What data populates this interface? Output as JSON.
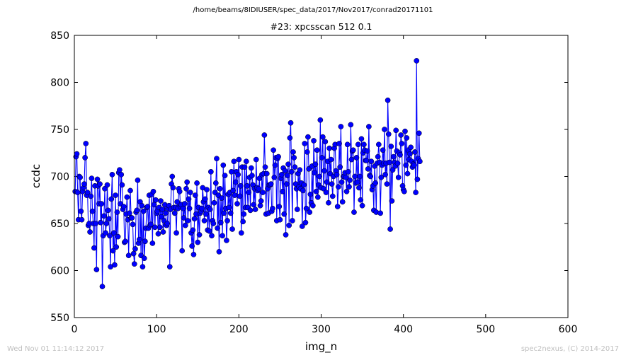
{
  "suptitle": "/home/beams/8IDIUSER/spec_data/2017/Nov2017/conrad20171101",
  "footer_left": "Wed Nov 01 11:14:12 2017",
  "footer_right": "spec2nexus, (C) 2014-2017",
  "colors": {
    "series": "#0000ff",
    "axes": "#000000",
    "footer": "#bfbfbf"
  },
  "chart_data": {
    "type": "line",
    "title": "#23: xpcsscan 512 0.1",
    "xlabel": "img_n",
    "ylabel": "ccdc",
    "xlim": [
      0,
      600
    ],
    "ylim": [
      550,
      850
    ],
    "xticks": [
      0,
      100,
      200,
      300,
      400,
      500,
      600
    ],
    "yticks": [
      550,
      600,
      650,
      700,
      750,
      800,
      850
    ],
    "grid": false,
    "marker": "circle",
    "series": [
      {
        "values": [
          684,
          721,
          724,
          683,
          654,
          700,
          699,
          663,
          654,
          684,
          688,
          692,
          720,
          735,
          680,
          683,
          648,
          650,
          641,
          679,
          698,
          663,
          650,
          624,
          690,
          650,
          601,
          697,
          690,
          671,
          692,
          651,
          671,
          583,
          637,
          658,
          687,
          640,
          650,
          691,
          664,
          655,
          637,
          604,
          676,
          702,
          621,
          640,
          606,
          680,
          625,
          662,
          636,
          704,
          707,
          671,
          702,
          691,
          665,
          668,
          630,
          631,
          660,
          678,
          654,
          616,
          661,
          685,
          656,
          656,
          649,
          618,
          607,
          623,
          662,
          664,
          696,
          629,
          633,
          673,
          616,
          669,
          604,
          663,
          613,
          631,
          645,
          667,
          668,
          645,
          680,
          648,
          649,
          681,
          629,
          684,
          670,
          646,
          675,
          661,
          663,
          639,
          667,
          646,
          674,
          657,
          665,
          641,
          653,
          670,
          661,
          648,
          650,
          666,
          669,
          604,
          665,
          692,
          700,
          688,
          667,
          661,
          667,
          640,
          673,
          666,
          687,
          684,
          668,
          670,
          621,
          666,
          656,
          671,
          648,
          687,
          694,
          653,
          676,
          666,
          683,
          640,
          626,
          643,
          617,
          655,
          680,
          660,
          693,
          630,
          667,
          638,
          661,
          663,
          666,
          688,
          673,
          653,
          676,
          660,
          686,
          643,
          667,
          642,
          665,
          705,
          637,
          653,
          650,
          672,
          683,
          693,
          719,
          645,
          680,
          620,
          687,
          651,
          677,
          637,
          712,
          661,
          701,
          666,
          632,
          653,
          681,
          667,
          683,
          661,
          705,
          644,
          685,
          716,
          680,
          694,
          705,
          671,
          702,
          718,
          679,
          690,
          640,
          710,
          652,
          660,
          710,
          667,
          716,
          690,
          667,
          683,
          699,
          664,
          709,
          701,
          691,
          670,
          687,
          665,
          718,
          688,
          685,
          687,
          698,
          669,
          674,
          702,
          683,
          703,
          744,
          710,
          660,
          703,
          687,
          661,
          691,
          691,
          692,
          663,
          666,
          728,
          699,
          712,
          720,
          653,
          719,
          721,
          668,
          654,
          698,
          702,
          684,
          709,
          660,
          706,
          638,
          692,
          701,
          713,
          648,
          741,
          757,
          705,
          653,
          726,
          720,
          710,
          692,
          687,
          665,
          703,
          689,
          707,
          687,
          693,
          647,
          685,
          691,
          735,
          651,
          666,
          726,
          742,
          708,
          662,
          681,
          672,
          711,
          669,
          738,
          704,
          713,
          684,
          728,
          678,
          691,
          700,
          760,
          688,
          720,
          742,
          687,
          706,
          737,
          683,
          694,
          716,
          672,
          730,
          703,
          718,
          692,
          679,
          700,
          730,
          734,
          706,
          702,
          668,
          689,
          735,
          710,
          753,
          694,
          673,
          700,
          700,
          704,
          699,
          684,
          734,
          705,
          689,
          696,
          755,
          718,
          727,
          728,
          662,
          700,
          693,
          720,
          694,
          734,
          688,
          700,
          675,
          740,
          669,
          725,
          734,
          728,
          717,
          717,
          727,
          708,
          753,
          701,
          700,
          716,
          686,
          690,
          664,
          711,
          693,
          662,
          714,
          721,
          734,
          715,
          661,
          699,
          712,
          728,
          714,
          750,
          702,
          714,
          692,
          781,
          745,
          715,
          644,
          732,
          674,
          707,
          721,
          715,
          711,
          749,
          727,
          714,
          699,
          725,
          723,
          744,
          735,
          690,
          686,
          684,
          748,
          712,
          741,
          703,
          728,
          718,
          724,
          731,
          716,
          710,
          713,
          712,
          726,
          683,
          823,
          697,
          719,
          746,
          716
        ]
      }
    ]
  }
}
